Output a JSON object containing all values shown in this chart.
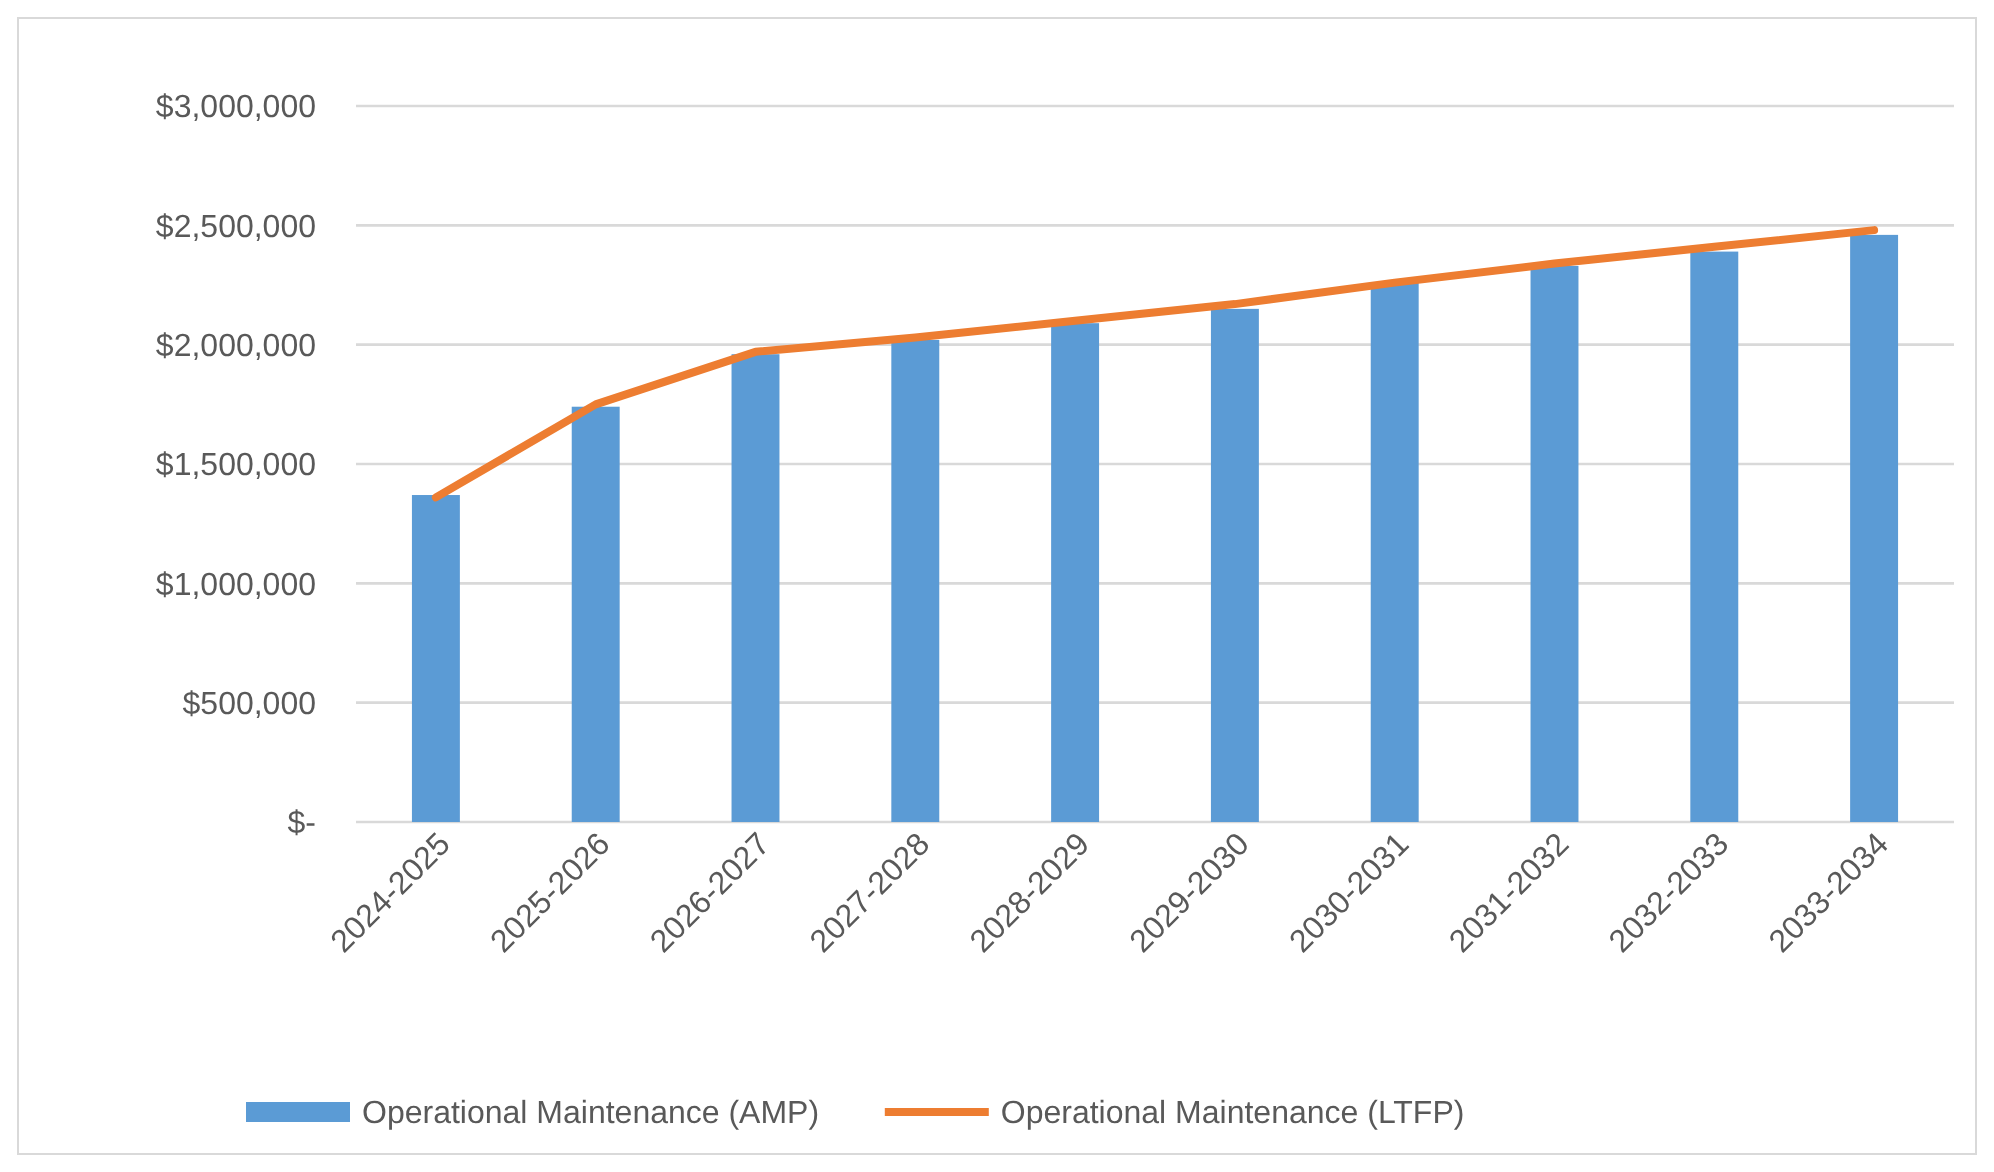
{
  "chart_data": {
    "type": "bar",
    "categories": [
      "2024-2025",
      "2025-2026",
      "2026-2027",
      "2027-2028",
      "2028-2029",
      "2029-2030",
      "2030-2031",
      "2031-2032",
      "2032-2033",
      "2033-2034"
    ],
    "series": [
      {
        "name": "Operational Maintenance (AMP)",
        "color": "#5b9bd5",
        "values": [
          1370000,
          1740000,
          1960000,
          2020000,
          2090000,
          2150000,
          2260000,
          2330000,
          2390000,
          2460000
        ]
      },
      {
        "name": "Operational Maintenance (LTFP)",
        "type": "line",
        "color": "#ed7d31",
        "values": [
          1360000,
          1750000,
          1970000,
          2030000,
          2100000,
          2170000,
          2260000,
          2340000,
          2410000,
          2480000
        ]
      }
    ],
    "ylim": [
      0,
      3000000
    ],
    "yticks": [
      {
        "value": 0,
        "label": "$-"
      },
      {
        "value": 500000,
        "label": "$500,000"
      },
      {
        "value": 1000000,
        "label": "$1,000,000"
      },
      {
        "value": 1500000,
        "label": "$1,500,000"
      },
      {
        "value": 2000000,
        "label": "$2,000,000"
      },
      {
        "value": 2500000,
        "label": "$2,500,000"
      },
      {
        "value": 3000000,
        "label": "$3,000,000"
      }
    ],
    "grid": "y",
    "legend": "bottom"
  }
}
